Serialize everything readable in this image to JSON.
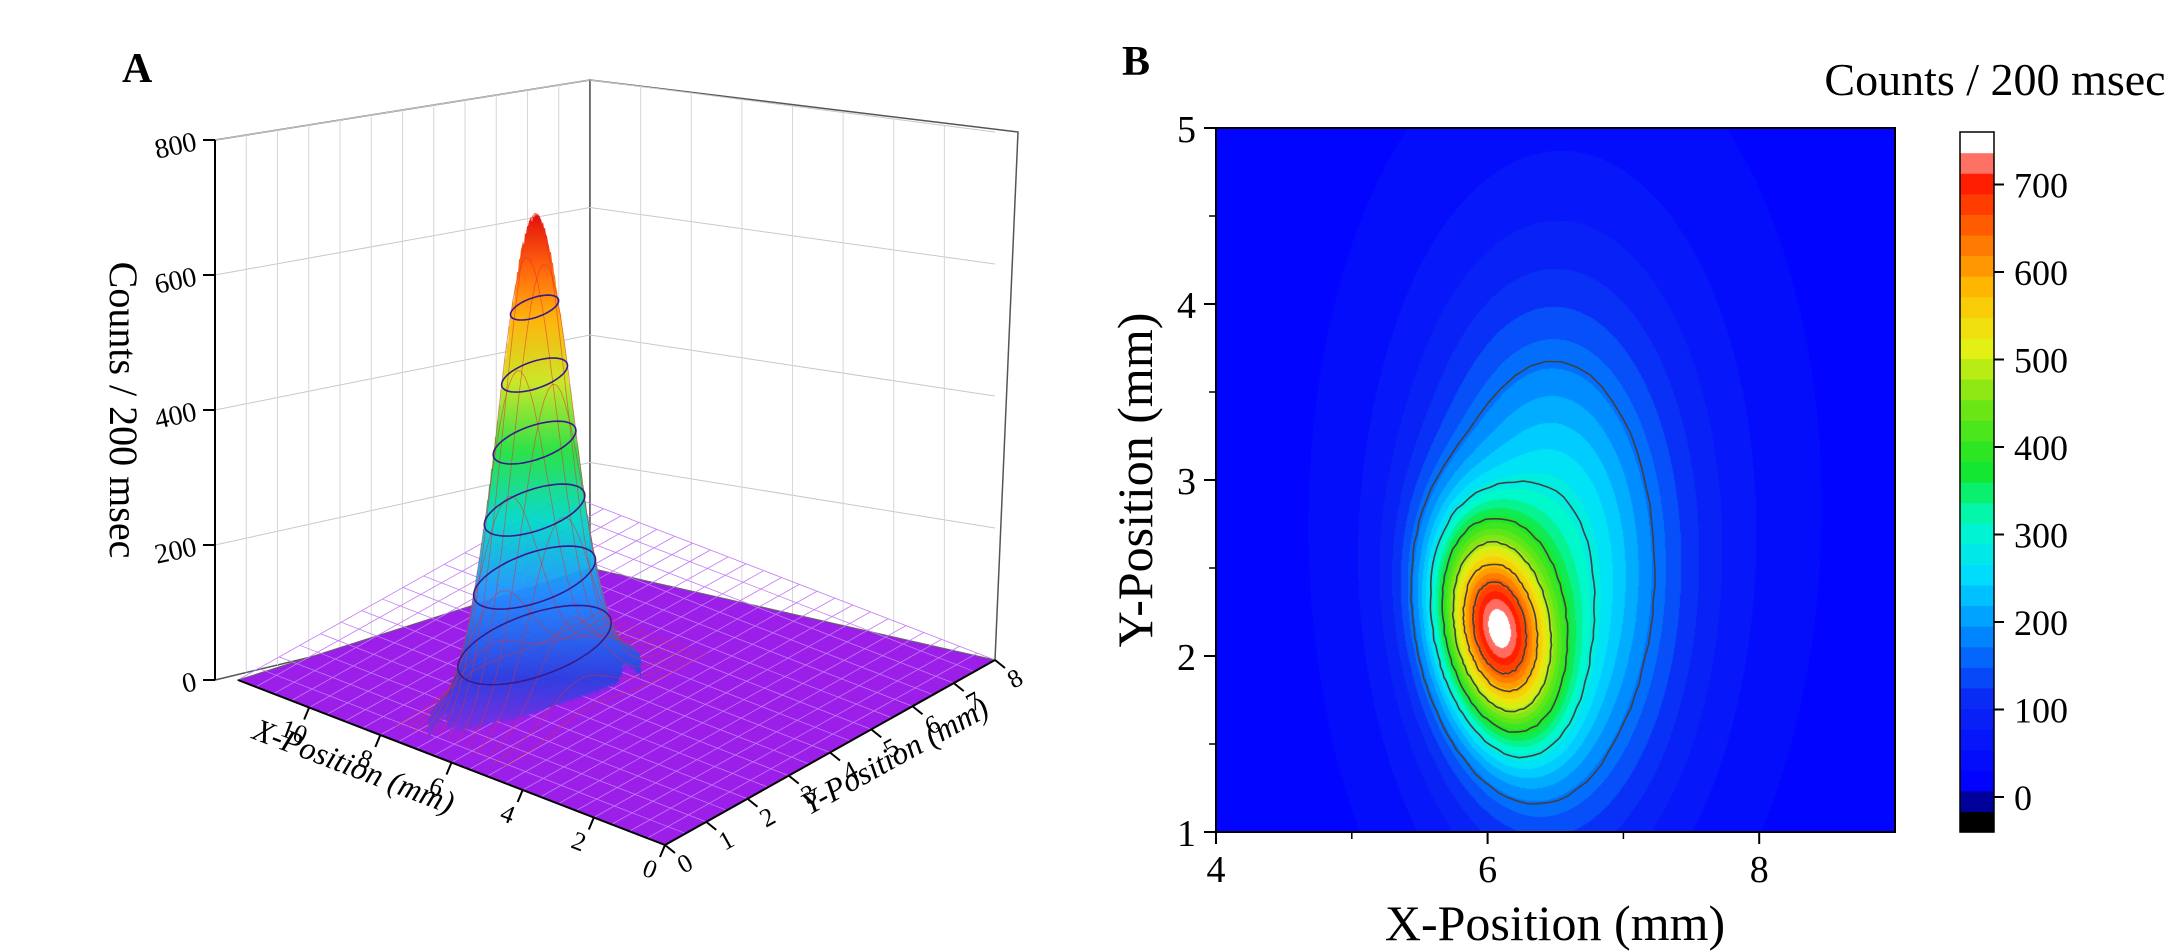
{
  "chart_data": [
    {
      "panel_label": "A",
      "type": "surface3d",
      "zlabel": "Counts / 200 msec",
      "xlabel": "X-Position (mm)",
      "ylabel": "Y-Position (mm)",
      "zticks": [
        "0",
        "200",
        "400",
        "600",
        "800"
      ],
      "xticks": [
        "0",
        "2",
        "4",
        "6",
        "8",
        "10"
      ],
      "yticks": [
        "0",
        "1",
        "2",
        "3",
        "4",
        "5",
        "6",
        "7",
        "8"
      ],
      "xlim": [
        0,
        12
      ],
      "ylim": [
        0,
        8
      ],
      "zlim": [
        0,
        800
      ],
      "peak": {
        "x": 6.1,
        "y": 2.1,
        "z": 740
      },
      "sigma_x": 0.55,
      "sigma_y": 0.75,
      "baseline": 20,
      "grid": true
    },
    {
      "panel_label": "B",
      "type": "heatmap",
      "xlabel": "X-Position (mm)",
      "ylabel": "Y-Position (mm)",
      "xticks": [
        "4",
        "6",
        "8"
      ],
      "yticks": [
        "1",
        "2",
        "3",
        "4",
        "5"
      ],
      "xlim": [
        4,
        9
      ],
      "ylim": [
        1,
        5
      ],
      "colorbar_title": "Counts / 200 msec",
      "colorbar_ticks": [
        "0",
        "100",
        "200",
        "300",
        "400",
        "500",
        "600",
        "700"
      ],
      "colorbar_range": [
        -40,
        760
      ],
      "peak": {
        "x": 6.05,
        "y": 2.15,
        "value": 700
      },
      "contour_levels": [
        180,
        300,
        400,
        500,
        600,
        680
      ]
    }
  ]
}
